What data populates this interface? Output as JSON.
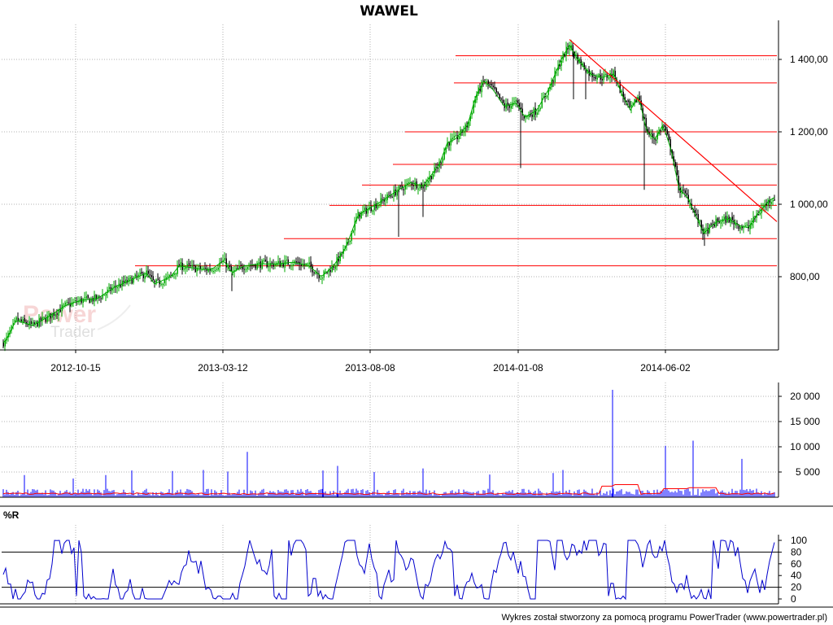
{
  "title": "WAWEL",
  "footer": "Wykres został stworzony za pomocą programu PowerTrader (www.powertrader.pl)",
  "watermark": {
    "line1": "Power",
    "line2": "Trader"
  },
  "colors": {
    "candle_up": "#00aa00",
    "candle_down": "#000000",
    "trend": "#ff0000",
    "volume": "#0000ff",
    "volume_avg": "#ff0000",
    "wr_line": "#0000cc",
    "grid": "#b0b0b0",
    "axis": "#000000"
  },
  "chart_data": [
    {
      "type": "candlestick",
      "title": "WAWEL",
      "x_tick_labels": [
        "2012-10-15",
        "2013-03-12",
        "2013-08-08",
        "2014-01-08",
        "2014-06-02"
      ],
      "y_tick_labels": [
        "800,00",
        "1 000,00",
        "1 200,00",
        "1 400,00"
      ],
      "y_ticks": [
        800,
        1000,
        1200,
        1400
      ],
      "ylim": [
        580,
        1470
      ],
      "grid": true,
      "price_path": [
        [
          0,
          615
        ],
        [
          6,
          620
        ],
        [
          20,
          680
        ],
        [
          40,
          665
        ],
        [
          60,
          690
        ],
        [
          80,
          720
        ],
        [
          100,
          735
        ],
        [
          120,
          740
        ],
        [
          140,
          770
        ],
        [
          160,
          790
        ],
        [
          180,
          810
        ],
        [
          190,
          780
        ],
        [
          210,
          800
        ],
        [
          220,
          830
        ],
        [
          250,
          820
        ],
        [
          260,
          820
        ],
        [
          275,
          845
        ],
        [
          285,
          810
        ],
        [
          300,
          830
        ],
        [
          320,
          835
        ],
        [
          340,
          835
        ],
        [
          360,
          840
        ],
        [
          380,
          830
        ],
        [
          395,
          800
        ],
        [
          410,
          830
        ],
        [
          425,
          880
        ],
        [
          440,
          970
        ],
        [
          455,
          990
        ],
        [
          470,
          1010
        ],
        [
          490,
          1040
        ],
        [
          505,
          1060
        ],
        [
          520,
          1050
        ],
        [
          540,
          1110
        ],
        [
          550,
          1170
        ],
        [
          560,
          1180
        ],
        [
          575,
          1220
        ],
        [
          585,
          1300
        ],
        [
          595,
          1340
        ],
        [
          605,
          1320
        ],
        [
          620,
          1270
        ],
        [
          635,
          1280
        ],
        [
          645,
          1240
        ],
        [
          660,
          1260
        ],
        [
          675,
          1320
        ],
        [
          690,
          1400
        ],
        [
          700,
          1440
        ],
        [
          710,
          1400
        ],
        [
          725,
          1360
        ],
        [
          740,
          1350
        ],
        [
          755,
          1360
        ],
        [
          765,
          1300
        ],
        [
          775,
          1260
        ],
        [
          785,
          1300
        ],
        [
          795,
          1200
        ],
        [
          805,
          1180
        ],
        [
          815,
          1220
        ],
        [
          825,
          1150
        ],
        [
          835,
          1040
        ],
        [
          845,
          1020
        ],
        [
          855,
          970
        ],
        [
          865,
          920
        ],
        [
          880,
          950
        ],
        [
          895,
          960
        ],
        [
          910,
          940
        ],
        [
          920,
          935
        ],
        [
          930,
          970
        ],
        [
          945,
          1010
        ],
        [
          953,
          1020
        ]
      ],
      "support_resistance": [
        {
          "value": 1410,
          "from": 560
        },
        {
          "value": 1335,
          "from": 558
        },
        {
          "value": 1200,
          "from": 498
        },
        {
          "value": 1110,
          "from": 483
        },
        {
          "value": 1053,
          "from": 445
        },
        {
          "value": 997,
          "from": 405
        },
        {
          "value": 905,
          "from": 349
        },
        {
          "value": 830,
          "from": 166
        }
      ],
      "trend_line": {
        "start": [
          700,
          1455
        ],
        "end": [
          955,
          952
        ]
      }
    },
    {
      "type": "bar",
      "y_tick_labels": [
        "20 000",
        "15 000",
        "10 000",
        "5 000"
      ],
      "y_ticks": [
        20000,
        15000,
        10000,
        5000
      ],
      "ylim": [
        0,
        21500
      ],
      "spikes": [
        [
          30,
          4400
        ],
        [
          90,
          3700
        ],
        [
          130,
          4400
        ],
        [
          162,
          5300
        ],
        [
          212,
          5200
        ],
        [
          250,
          5400
        ],
        [
          280,
          5100
        ],
        [
          304,
          9000
        ],
        [
          397,
          5300
        ],
        [
          415,
          6200
        ],
        [
          460,
          5000
        ],
        [
          520,
          5700
        ],
        [
          602,
          4500
        ],
        [
          680,
          4800
        ],
        [
          692,
          5400
        ],
        [
          753,
          21300
        ],
        [
          818,
          10200
        ],
        [
          852,
          11200
        ],
        [
          912,
          7600
        ]
      ],
      "avg_bumps": [
        [
          755,
          2200
        ],
        [
          770,
          2500
        ],
        [
          830,
          1700
        ],
        [
          865,
          1900
        ]
      ]
    },
    {
      "type": "line",
      "title": "%R",
      "y_tick_labels": [
        "100",
        "80",
        "60",
        "40",
        "20",
        "0"
      ],
      "y_ticks": [
        100,
        80,
        60,
        40,
        20,
        0
      ],
      "ylim": [
        0,
        100
      ],
      "ref_lines": [
        80,
        20
      ]
    }
  ]
}
